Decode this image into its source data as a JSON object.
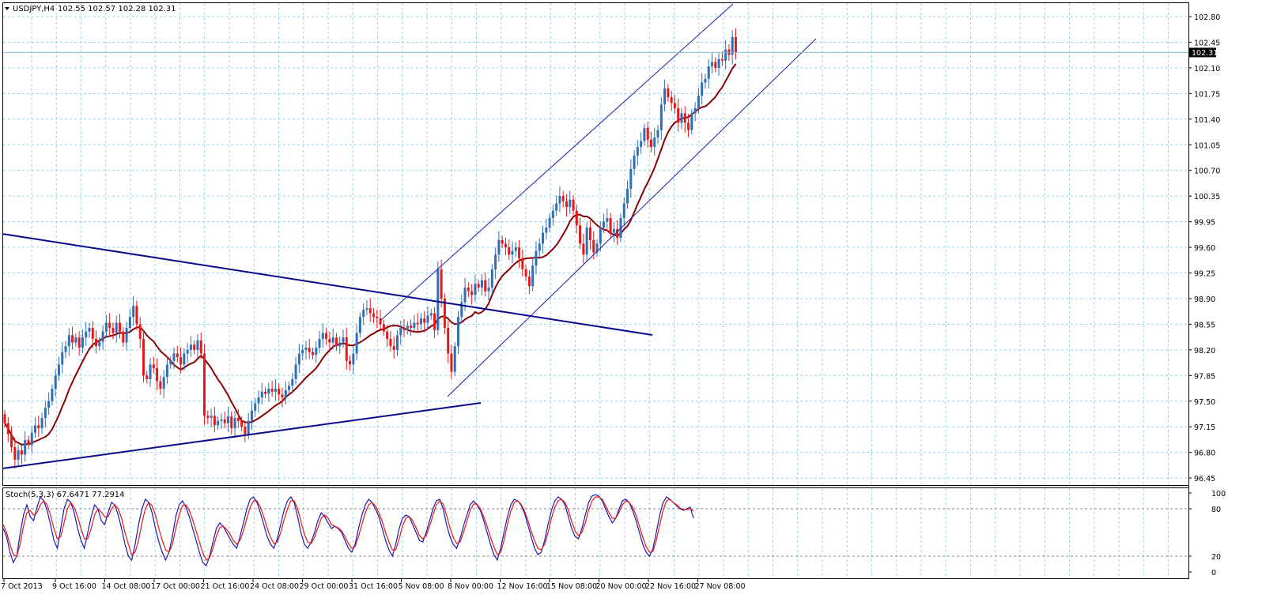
{
  "header": {
    "symbol_label": "USDJPY,H4",
    "ohlc_label": "102.55 102.57 102.28 102.31"
  },
  "indicator": {
    "label": "Stoch(5,3,3) 67.6471 77.2914"
  },
  "current_price": "102.31",
  "colors": {
    "bull_candle": "#2e6fb5",
    "bear_candle": "#e8171a",
    "moving_average": "#8b0000",
    "trendline": "#0a0a8c",
    "channel": "#1a1aa8",
    "grid": "#9ccfe0",
    "stoch_main": "#1a1ab0",
    "stoch_signal": "#e81818",
    "price_badge": "#000000"
  },
  "chart_data": [
    {
      "type": "candlestick",
      "symbol": "USDJPY",
      "timeframe": "H4",
      "grid": true,
      "y_ticks": [
        "102.80",
        "102.45",
        "102.10",
        "101.75",
        "101.40",
        "101.05",
        "100.70",
        "100.35",
        "99.95",
        "99.60",
        "99.25",
        "98.90",
        "98.55",
        "98.20",
        "97.85",
        "97.50",
        "97.15",
        "96.80",
        "96.45"
      ],
      "x_ticks": [
        "7 Oct 2013",
        "9 Oct 16:00",
        "14 Oct 08:00",
        "17 Oct 00:00",
        "21 Oct 16:00",
        "24 Oct 08:00",
        "29 Oct 00:00",
        "31 Oct 16:00",
        "5 Nov 08:00",
        "8 Nov 00:00",
        "12 Nov 16:00",
        "15 Nov 08:00",
        "20 Nov 00:00",
        "22 Nov 16:00",
        "27 Nov 08:00"
      ],
      "ylim": [
        96.42,
        102.98
      ],
      "closes": [
        97.25,
        97.1,
        96.92,
        96.75,
        96.88,
        96.82,
        97.02,
        96.95,
        97.12,
        97.22,
        97.18,
        97.32,
        97.46,
        97.55,
        97.72,
        97.9,
        98.05,
        98.22,
        98.3,
        98.45,
        98.35,
        98.42,
        98.28,
        98.42,
        98.5,
        98.55,
        98.4,
        98.3,
        98.36,
        98.5,
        98.62,
        98.55,
        98.48,
        98.62,
        98.5,
        98.35,
        98.55,
        98.7,
        98.85,
        98.6,
        98.4,
        97.9,
        97.85,
        98.05,
        98.0,
        97.82,
        97.72,
        97.88,
        98.05,
        98.1,
        98.2,
        98.15,
        98.05,
        98.2,
        98.25,
        98.32,
        98.25,
        98.38,
        98.2,
        97.35,
        97.32,
        97.35,
        97.22,
        97.28,
        97.3,
        97.25,
        97.34,
        97.18,
        97.32,
        97.28,
        97.2,
        97.1,
        97.28,
        97.42,
        97.52,
        97.6,
        97.68,
        97.65,
        97.72,
        97.68,
        97.72,
        97.64,
        97.6,
        97.7,
        97.76,
        97.85,
        98.05,
        98.2,
        98.25,
        98.28,
        98.22,
        98.18,
        98.28,
        98.4,
        98.48,
        98.4,
        98.35,
        98.42,
        98.3,
        98.35,
        98.42,
        98.1,
        98.05,
        98.2,
        98.48,
        98.7,
        98.8,
        98.82,
        98.75,
        98.7,
        98.68,
        98.6,
        98.5,
        98.4,
        98.3,
        98.25,
        98.45,
        98.55,
        98.52,
        98.58,
        98.55,
        98.62,
        98.6,
        98.68,
        98.62,
        98.72,
        98.75,
        98.52,
        99.35,
        98.95,
        98.55,
        98.2,
        97.95,
        98.3,
        98.7,
        98.9,
        99.1,
        99.05,
        99.0,
        99.15,
        99.1,
        99.2,
        99.05,
        99.1,
        99.35,
        99.55,
        99.75,
        99.7,
        99.65,
        99.55,
        99.6,
        99.65,
        99.5,
        99.35,
        99.25,
        99.12,
        99.4,
        99.6,
        99.7,
        99.85,
        99.92,
        100.05,
        100.15,
        100.25,
        100.35,
        100.28,
        100.2,
        100.3,
        100.15,
        99.95,
        99.7,
        99.55,
        99.92,
        99.75,
        99.58,
        99.7,
        99.92,
        100.0,
        100.05,
        99.85,
        99.9,
        99.78,
        100.05,
        100.25,
        100.45,
        100.72,
        100.9,
        101.02,
        101.1,
        101.28,
        101.12,
        101.02,
        101.15,
        101.25,
        101.6,
        101.82,
        101.7,
        101.62,
        101.55,
        101.35,
        101.48,
        101.35,
        101.25,
        101.48,
        101.55,
        101.72,
        101.9,
        101.95,
        102.12,
        102.18,
        102.1,
        102.22,
        102.2,
        102.35,
        102.28,
        102.52,
        102.31
      ]
    },
    {
      "type": "line",
      "title": "Stoch(5,3,3)",
      "ylim": [
        0,
        100
      ],
      "y_ticks": [
        "100",
        "80",
        "20",
        "0"
      ],
      "series": [
        {
          "name": "67.6471",
          "values": [
            55,
            45,
            25,
            12,
            20,
            48,
            72,
            85,
            70,
            65,
            82,
            95,
            90,
            78,
            60,
            40,
            30,
            55,
            80,
            92,
            88,
            75,
            55,
            40,
            30,
            50,
            70,
            85,
            80,
            65,
            60,
            75,
            88,
            85,
            72,
            55,
            35,
            20,
            15,
            35,
            60,
            80,
            92,
            88,
            75,
            55,
            38,
            25,
            15,
            25,
            45,
            70,
            85,
            90,
            82,
            70,
            55,
            40,
            25,
            12,
            8,
            20,
            38,
            55,
            62,
            58,
            50,
            42,
            35,
            30,
            45,
            62,
            80,
            92,
            95,
            88,
            75,
            60,
            45,
            35,
            30,
            42,
            60,
            78,
            90,
            95,
            88,
            70,
            50,
            35,
            30,
            38,
            50,
            65,
            75,
            70,
            62,
            55,
            58,
            55,
            50,
            40,
            30,
            25,
            35,
            55,
            72,
            85,
            92,
            88,
            80,
            70,
            55,
            40,
            28,
            20,
            35,
            55,
            68,
            72,
            70,
            60,
            50,
            40,
            38,
            50,
            65,
            80,
            90,
            92,
            80,
            60,
            45,
            35,
            30,
            42,
            58,
            72,
            85,
            90,
            85,
            78,
            65,
            50,
            35,
            22,
            15,
            30,
            50,
            70,
            85,
            92,
            90,
            85,
            75,
            60,
            45,
            30,
            22,
            25,
            40,
            60,
            78,
            90,
            95,
            92,
            85,
            70,
            55,
            45,
            42,
            55,
            72,
            88,
            96,
            98,
            96,
            90,
            80,
            70,
            62,
            68,
            80,
            90,
            92,
            88,
            78,
            65,
            50,
            35,
            25,
            20,
            30,
            50,
            72,
            88,
            95,
            92,
            88,
            84,
            80,
            78,
            80,
            82,
            68
          ]
        },
        {
          "name": "77.2914",
          "values": [
            60,
            50,
            35,
            22,
            20,
            35,
            58,
            75,
            78,
            72,
            75,
            85,
            90,
            85,
            72,
            55,
            42,
            45,
            62,
            80,
            88,
            82,
            70,
            55,
            42,
            42,
            55,
            72,
            80,
            76,
            70,
            70,
            80,
            85,
            80,
            68,
            50,
            35,
            22,
            25,
            40,
            62,
            80,
            88,
            84,
            72,
            55,
            40,
            28,
            25,
            35,
            55,
            72,
            84,
            85,
            78,
            66,
            52,
            38,
            24,
            15,
            18,
            30,
            45,
            56,
            58,
            54,
            48,
            40,
            35,
            40,
            52,
            68,
            82,
            90,
            90,
            82,
            70,
            56,
            44,
            36,
            38,
            50,
            66,
            80,
            90,
            90,
            80,
            64,
            48,
            38,
            36,
            44,
            56,
            68,
            72,
            68,
            60,
            58,
            56,
            52,
            45,
            36,
            30,
            32,
            45,
            60,
            75,
            85,
            88,
            84,
            75,
            64,
            50,
            38,
            28,
            28,
            42,
            58,
            68,
            70,
            65,
            56,
            46,
            42,
            46,
            58,
            72,
            85,
            90,
            86,
            72,
            56,
            44,
            36,
            38,
            50,
            64,
            78,
            86,
            86,
            80,
            70,
            58,
            44,
            32,
            22,
            25,
            40,
            60,
            77,
            88,
            90,
            86,
            78,
            66,
            52,
            40,
            30,
            28,
            35,
            50,
            68,
            82,
            90,
            92,
            88,
            78,
            64,
            52,
            46,
            50,
            62,
            78,
            90,
            95,
            95,
            92,
            84,
            75,
            68,
            68,
            76,
            85,
            90,
            88,
            82,
            72,
            58,
            44,
            32,
            25,
            26,
            40,
            60,
            78,
            90,
            92,
            88,
            85,
            81,
            79,
            79,
            80,
            77
          ]
        }
      ]
    }
  ]
}
